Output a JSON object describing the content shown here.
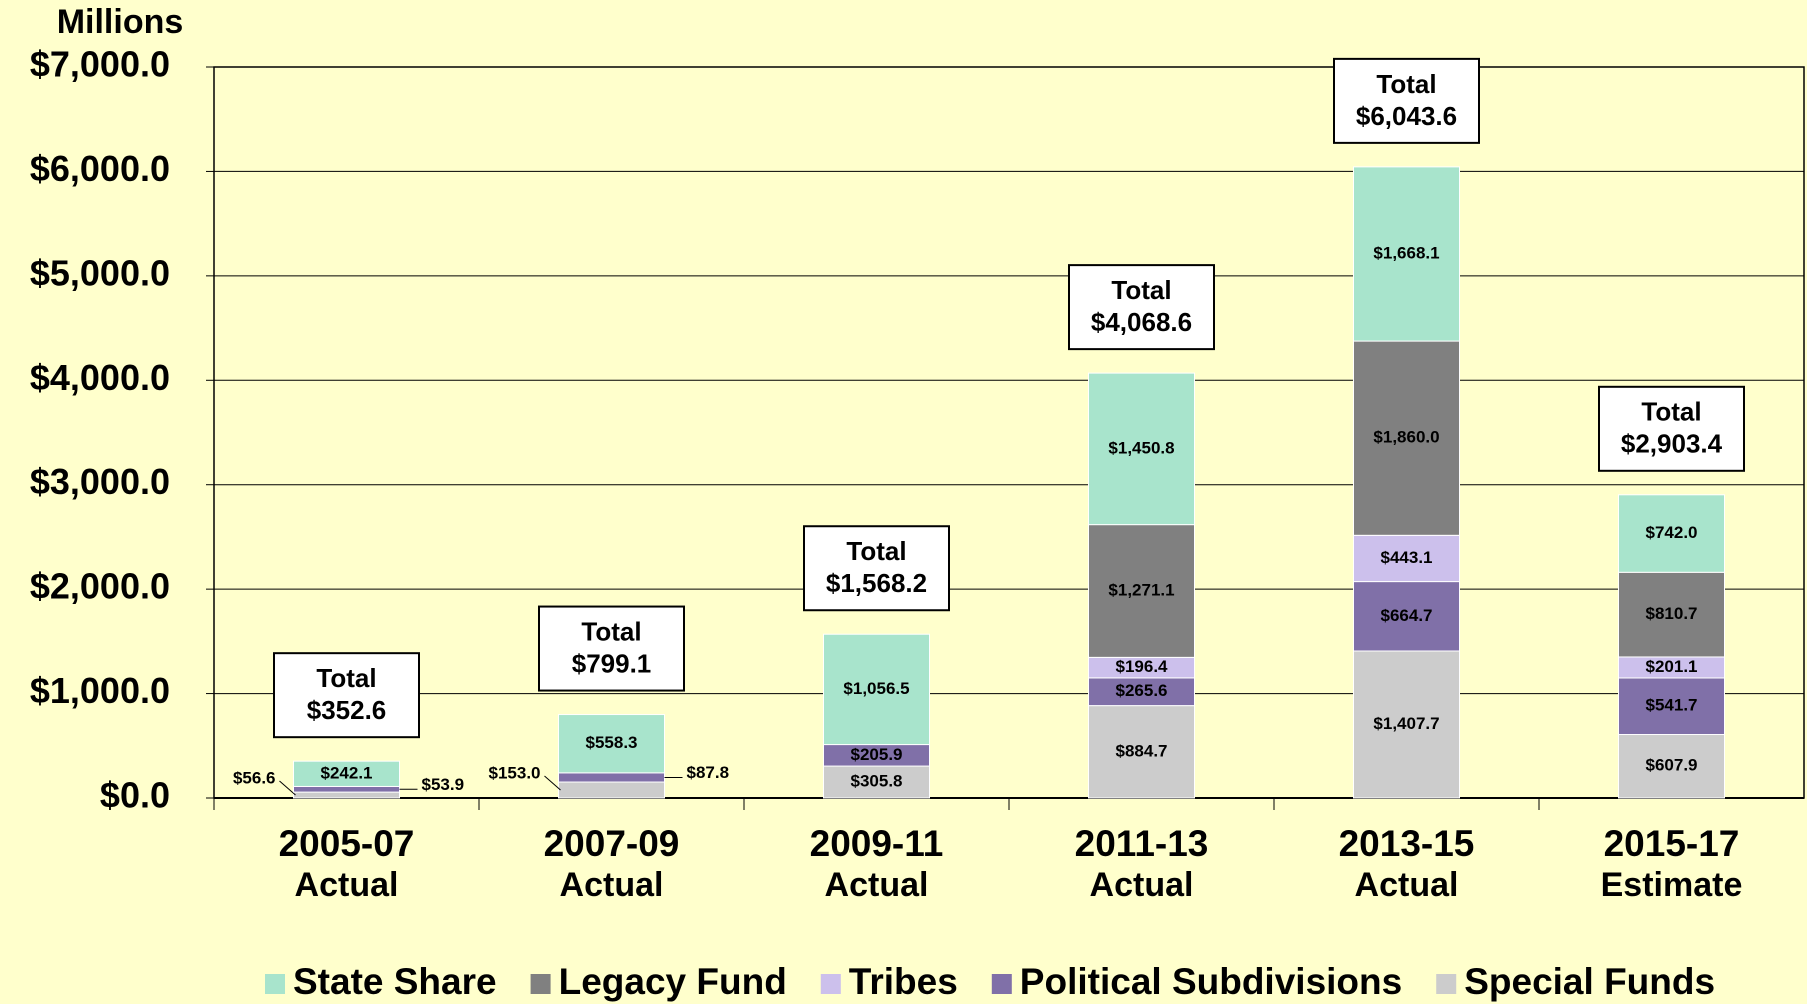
{
  "chart_data": {
    "type": "stacked_bar",
    "ylabel": "Millions",
    "categories": [
      "2005-07",
      "2007-09",
      "2009-11",
      "2011-13",
      "2013-15",
      "2015-17"
    ],
    "category_sublabels": [
      "Actual",
      "Actual",
      "Actual",
      "Actual",
      "Actual",
      "Estimate"
    ],
    "series": [
      {
        "name": "Special Funds",
        "color": "#cccccc",
        "values": [
          56.6,
          153.0,
          305.8,
          884.7,
          1407.7,
          607.9
        ],
        "value_labels": [
          "$56.6",
          "$153.0",
          "$305.8",
          "$884.7",
          "$1,407.7",
          "$607.9"
        ]
      },
      {
        "name": "Political Subdivisions",
        "color": "#8070a8",
        "values": [
          53.9,
          87.8,
          205.9,
          265.6,
          664.7,
          541.7
        ],
        "value_labels": [
          "$53.9",
          "$87.8",
          "$205.9",
          "$265.6",
          "$664.7",
          "$541.7"
        ]
      },
      {
        "name": "Tribes",
        "color": "#ccc0ec",
        "values": [
          null,
          null,
          null,
          196.4,
          443.1,
          201.1
        ],
        "value_labels": [
          null,
          null,
          null,
          "$196.4",
          "$443.1",
          "$201.1"
        ]
      },
      {
        "name": "Legacy Fund",
        "color": "#808080",
        "values": [
          null,
          null,
          null,
          1271.1,
          1860.0,
          810.7
        ],
        "value_labels": [
          null,
          null,
          null,
          "$1,271.1",
          "$1,860.0",
          "$810.7"
        ]
      },
      {
        "name": "State Share",
        "color": "#a8e4cc",
        "values": [
          242.1,
          558.3,
          1056.5,
          1450.8,
          1668.1,
          742.0
        ],
        "value_labels": [
          "$242.1",
          "$558.3",
          "$1,056.5",
          "$1,450.8",
          "$1,668.1",
          "$742.0"
        ]
      }
    ],
    "total_title": "Total",
    "totals": [
      352.6,
      799.1,
      1568.2,
      4068.6,
      6043.6,
      2903.4
    ],
    "total_labels": [
      "$352.6",
      "$799.1",
      "$1,568.2",
      "$4,068.6",
      "$6,043.6",
      "$2,903.4"
    ],
    "ylim": [
      0,
      7000
    ],
    "yticks": [
      {
        "value": 0,
        "label": "$0.0"
      },
      {
        "value": 1000,
        "label": "$1,000.0"
      },
      {
        "value": 2000,
        "label": "$2,000.0"
      },
      {
        "value": 3000,
        "label": "$3,000.0"
      },
      {
        "value": 4000,
        "label": "$4,000.0"
      },
      {
        "value": 5000,
        "label": "$5,000.0"
      },
      {
        "value": 6000,
        "label": "$6,000.0"
      },
      {
        "value": 7000,
        "label": "$7,000.0"
      }
    ],
    "grid": true
  }
}
